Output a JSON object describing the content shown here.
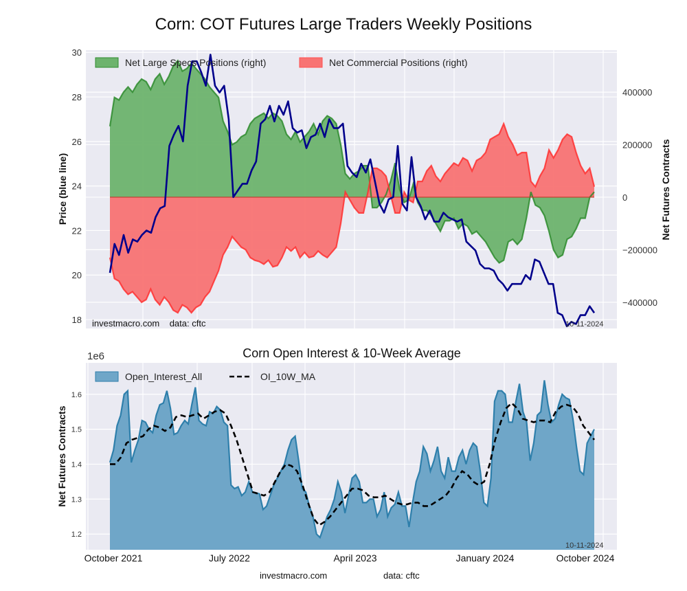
{
  "title": "Corn: COT Futures Large Traders Weekly Positions",
  "chart_data": [
    {
      "type": "area",
      "title": "Corn: COT Futures Large Traders Weekly Positions",
      "ylabel_left": "Price (blue line)",
      "ylabel_right": "Net Futures Contracts",
      "ylim_left": [
        17.6,
        30.1
      ],
      "ylim_right": [
        -500000,
        560000
      ],
      "yticks_left": [
        "18",
        "20",
        "22",
        "24",
        "26",
        "28",
        "30"
      ],
      "yticks_right": [
        "-400000",
        "-200000",
        "0",
        "200000",
        "400000"
      ],
      "legend": [
        "Net Large Specs Positions (right)",
        "Net Commercial Positions (right)"
      ],
      "legend_position": "top-left",
      "grid": true,
      "annotation_left": "investmacro.com    data: cftc",
      "annotation_right": "10-11-2024",
      "x_start": "2021-09",
      "x_end": "2024-10-11",
      "x_step_weeks": 2,
      "series": [
        {
          "name": "Price",
          "color": "#00008b",
          "axis": "left",
          "values": [
            20.1,
            21.4,
            20.9,
            21.8,
            21.0,
            21.6,
            21.5,
            21.8,
            22.0,
            21.9,
            22.6,
            23.0,
            23.1,
            25.8,
            26.3,
            26.7,
            26.0,
            28.5,
            29.6,
            29.6,
            29.1,
            28.5,
            29.9,
            28.5,
            28.2,
            28.5,
            27.0,
            23.5,
            23.8,
            24.1,
            24.1,
            24.7,
            25.1,
            26.8,
            27.0,
            27.6,
            26.9,
            27.6,
            27.2,
            27.8,
            26.6,
            26.4,
            26.5,
            25.7,
            26.2,
            26.3,
            26.8,
            26.2,
            27.0,
            26.6,
            26.6,
            26.8,
            24.9,
            24.6,
            24.4,
            25.0,
            24.6,
            25.2,
            24.2,
            23.2,
            22.8,
            23.4,
            23.5,
            25.8,
            23.2,
            22.9,
            25.3,
            23.5,
            23.1,
            22.5,
            22.9,
            22.4,
            22.4,
            22.8,
            22.6,
            22.5,
            22.4,
            22.5,
            21.5,
            21.3,
            21.1,
            20.5,
            20.3,
            20.3,
            20.2,
            19.8,
            19.6,
            19.3,
            19.6,
            19.6,
            19.6,
            20.0,
            19.8,
            20.7,
            20.6,
            20.1,
            19.6,
            19.6,
            18.3,
            18.2,
            17.7,
            17.9,
            17.8,
            18.2,
            18.2,
            18.6,
            18.3
          ]
        },
        {
          "name": "Net Large Specs Positions (right)",
          "color": "#2e8b2e",
          "fill": "#6db36d",
          "axis": "right",
          "values": [
            270000,
            380000,
            370000,
            400000,
            420000,
            400000,
            430000,
            450000,
            440000,
            410000,
            450000,
            470000,
            430000,
            460000,
            500000,
            520000,
            480000,
            490000,
            510000,
            490000,
            470000,
            450000,
            420000,
            400000,
            380000,
            290000,
            250000,
            200000,
            210000,
            230000,
            240000,
            280000,
            300000,
            310000,
            320000,
            300000,
            320000,
            310000,
            290000,
            240000,
            220000,
            250000,
            210000,
            230000,
            250000,
            280000,
            240000,
            290000,
            310000,
            300000,
            280000,
            200000,
            90000,
            70000,
            90000,
            100000,
            120000,
            120000,
            -40000,
            -40000,
            -20000,
            10000,
            60000,
            130000,
            30000,
            -20000,
            -10000,
            50000,
            -20000,
            -50000,
            -50000,
            -70000,
            -100000,
            -130000,
            -90000,
            -90000,
            -80000,
            -120000,
            -100000,
            -110000,
            -140000,
            -130000,
            -150000,
            -170000,
            -200000,
            -230000,
            -250000,
            -240000,
            -170000,
            -160000,
            -180000,
            -160000,
            -80000,
            20000,
            -30000,
            -40000,
            -70000,
            -130000,
            -200000,
            -230000,
            -220000,
            -160000,
            -150000,
            -120000,
            -80000,
            -80000,
            0,
            20000
          ]
        },
        {
          "name": "Net Commercial Positions (right)",
          "color": "#ff3030",
          "fill": "#f87373",
          "axis": "right",
          "values": [
            -230000,
            -310000,
            -320000,
            -350000,
            -370000,
            -360000,
            -380000,
            -400000,
            -390000,
            -350000,
            -390000,
            -410000,
            -380000,
            -400000,
            -430000,
            -440000,
            -410000,
            -420000,
            -440000,
            -420000,
            -410000,
            -380000,
            -360000,
            -320000,
            -280000,
            -220000,
            -190000,
            -150000,
            -170000,
            -190000,
            -200000,
            -230000,
            -240000,
            -245000,
            -255000,
            -240000,
            -265000,
            -260000,
            -230000,
            -190000,
            -205000,
            -190000,
            -230000,
            -210000,
            -230000,
            -225000,
            -205000,
            -220000,
            -230000,
            -210000,
            -190000,
            -100000,
            20000,
            -10000,
            -40000,
            -60000,
            -60000,
            20000,
            110000,
            110000,
            100000,
            80000,
            10000,
            -60000,
            -60000,
            20000,
            -10000,
            -20000,
            60000,
            60000,
            100000,
            120000,
            80000,
            60000,
            90000,
            110000,
            130000,
            120000,
            150000,
            140000,
            100000,
            140000,
            150000,
            170000,
            220000,
            230000,
            240000,
            280000,
            230000,
            200000,
            160000,
            170000,
            170000,
            60000,
            40000,
            80000,
            110000,
            180000,
            150000,
            180000,
            220000,
            240000,
            230000,
            170000,
            120000,
            90000,
            110000,
            40000
          ]
        }
      ]
    },
    {
      "type": "area",
      "title": "Corn Open Interest & 10-Week Average",
      "ylabel": "Net Futures Contracts",
      "yscale_label": "1e6",
      "ylim": [
        1.155,
        1.69
      ],
      "yticks": [
        "1.2",
        "1.3",
        "1.4",
        "1.5",
        "1.6"
      ],
      "xticks": [
        "October 2021",
        "July 2022",
        "April 2023",
        "January 2024",
        "October 2024"
      ],
      "legend": [
        "Open_Interest_All",
        "OI_10W_MA"
      ],
      "legend_position": "top-left",
      "grid": true,
      "annotation_right": "10-11-2024",
      "series": [
        {
          "name": "Open_Interest_All",
          "color": "#2e7fab",
          "fill": "#6fa6c8",
          "values": [
            1.405,
            1.44,
            1.51,
            1.54,
            1.6,
            1.61,
            1.405,
            1.44,
            1.47,
            1.525,
            1.52,
            1.5,
            1.49,
            1.54,
            1.57,
            1.575,
            1.61,
            1.56,
            1.485,
            1.49,
            1.51,
            1.525,
            1.515,
            1.57,
            1.62,
            1.525,
            1.515,
            1.51,
            1.55,
            1.545,
            1.565,
            1.555,
            1.52,
            1.51,
            1.34,
            1.33,
            1.335,
            1.31,
            1.32,
            1.35,
            1.32,
            1.318,
            1.315,
            1.27,
            1.28,
            1.31,
            1.34,
            1.36,
            1.38,
            1.4,
            1.44,
            1.47,
            1.48,
            1.41,
            1.33,
            1.32,
            1.28,
            1.25,
            1.2,
            1.19,
            1.22,
            1.25,
            1.27,
            1.3,
            1.35,
            1.32,
            1.26,
            1.31,
            1.36,
            1.37,
            1.35,
            1.29,
            1.29,
            1.3,
            1.3,
            1.25,
            1.27,
            1.32,
            1.25,
            1.275,
            1.285,
            1.32,
            1.28,
            1.28,
            1.22,
            1.29,
            1.35,
            1.38,
            1.45,
            1.43,
            1.38,
            1.41,
            1.45,
            1.38,
            1.36,
            1.42,
            1.38,
            1.38,
            1.42,
            1.44,
            1.4,
            1.44,
            1.46,
            1.45,
            1.38,
            1.29,
            1.28,
            1.36,
            1.58,
            1.61,
            1.61,
            1.6,
            1.52,
            1.52,
            1.58,
            1.63,
            1.55,
            1.52,
            1.41,
            1.46,
            1.54,
            1.55,
            1.64,
            1.57,
            1.52,
            1.53,
            1.57,
            1.6,
            1.59,
            1.585,
            1.53,
            1.45,
            1.38,
            1.37,
            1.46,
            1.48,
            1.5
          ]
        },
        {
          "name": "OI_10W_MA",
          "color": "#000000",
          "dashed": true,
          "values": [
            1.4,
            1.4,
            1.42,
            1.46,
            1.47,
            1.475,
            1.48,
            1.5,
            1.51,
            1.505,
            1.495,
            1.505,
            1.535,
            1.54,
            1.535,
            1.54,
            1.545,
            1.53,
            1.54,
            1.55,
            1.555,
            1.545,
            1.51,
            1.47,
            1.42,
            1.37,
            1.32,
            1.315,
            1.31,
            1.32,
            1.35,
            1.38,
            1.4,
            1.395,
            1.38,
            1.34,
            1.29,
            1.245,
            1.225,
            1.235,
            1.25,
            1.27,
            1.29,
            1.31,
            1.33,
            1.33,
            1.325,
            1.31,
            1.305,
            1.305,
            1.31,
            1.3,
            1.29,
            1.285,
            1.285,
            1.29,
            1.29,
            1.28,
            1.28,
            1.29,
            1.3,
            1.31,
            1.33,
            1.36,
            1.38,
            1.37,
            1.35,
            1.34,
            1.35,
            1.4,
            1.47,
            1.52,
            1.56,
            1.575,
            1.56,
            1.53,
            1.525,
            1.52,
            1.525,
            1.525,
            1.52,
            1.55,
            1.565,
            1.57,
            1.565,
            1.545,
            1.51,
            1.49,
            1.47
          ]
        }
      ]
    }
  ],
  "footer": {
    "site": "investmacro.com",
    "source": "data: cftc"
  }
}
